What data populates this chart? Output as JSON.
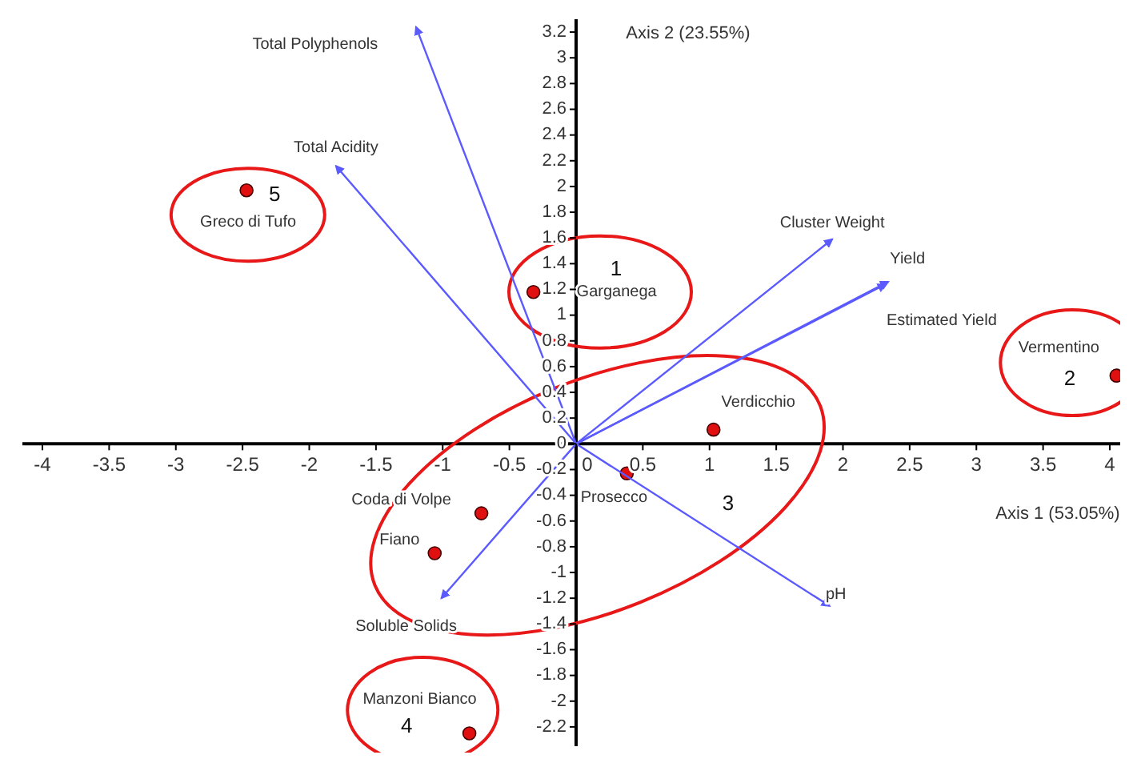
{
  "chart_data": {
    "type": "scatter",
    "xlabel": "Axis 1 (53.05%)",
    "ylabel": "Axis 2 (23.55%)",
    "xlim": [
      -4.15,
      4.15
    ],
    "ylim": [
      -2.35,
      3.3
    ],
    "xticks": [
      -4,
      -3.5,
      -3,
      -2.5,
      -2,
      -1.5,
      -1,
      -0.5,
      0,
      0.5,
      1,
      1.5,
      2,
      2.5,
      3,
      3.5,
      4
    ],
    "yticks": [
      -2.2,
      -2,
      -1.8,
      -1.6,
      -1.4,
      -1.2,
      -1,
      -0.8,
      -0.6,
      -0.4,
      -0.2,
      0,
      0.2,
      0.4,
      0.6,
      0.8,
      1,
      1.2,
      1.4,
      1.6,
      1.8,
      2,
      2.2,
      2.4,
      2.6,
      2.8,
      3,
      3.2
    ],
    "grid": false,
    "marker": "circle",
    "series": [
      {
        "name": "Greco di Tufo",
        "color": "#e01010",
        "x": [
          -2.47
        ],
        "values": [
          1.97
        ]
      },
      {
        "name": "Garganega",
        "color": "#e01010",
        "x": [
          -0.32
        ],
        "values": [
          1.18
        ]
      },
      {
        "name": "Vermentino",
        "color": "#e01010",
        "x": [
          4.05
        ],
        "values": [
          0.53
        ]
      },
      {
        "name": "Verdicchio",
        "color": "#e01010",
        "x": [
          1.03
        ],
        "values": [
          0.11
        ]
      },
      {
        "name": "Prosecco",
        "color": "#e01010",
        "x": [
          0.38
        ],
        "values": [
          -0.23
        ]
      },
      {
        "name": "Coda di Volpe",
        "color": "#e01010",
        "x": [
          -0.71
        ],
        "values": [
          -0.54
        ]
      },
      {
        "name": "Fiano",
        "color": "#e01010",
        "x": [
          -1.06
        ],
        "values": [
          -0.85
        ]
      },
      {
        "name": "Manzoni Bianco",
        "color": "#e01010",
        "x": [
          -0.8
        ],
        "values": [
          -2.25
        ]
      },
      {
        "name": "Total Polyphenols",
        "type": "line",
        "marker": "none",
        "color": "#5a5aff",
        "x": [
          0,
          -1.2
        ],
        "values": [
          0,
          3.24
        ]
      },
      {
        "name": "Total Acidity",
        "type": "line",
        "marker": "none",
        "color": "#5a5aff",
        "x": [
          0,
          -1.8
        ],
        "values": [
          0,
          2.16
        ]
      },
      {
        "name": "Cluster Weight",
        "type": "line",
        "marker": "none",
        "color": "#5a5aff",
        "x": [
          0,
          1.92
        ],
        "values": [
          0,
          1.59
        ]
      },
      {
        "name": "Yield",
        "type": "line",
        "marker": "none",
        "color": "#5a5aff",
        "x": [
          0,
          2.34
        ],
        "values": [
          0,
          1.26
        ]
      },
      {
        "name": "Estimated Yield",
        "type": "line",
        "marker": "none",
        "color": "#5a5aff",
        "x": [
          0,
          2.32
        ],
        "values": [
          0,
          1.24
        ]
      },
      {
        "name": "pH",
        "type": "line",
        "marker": "none",
        "color": "#5a5aff",
        "x": [
          0,
          1.9
        ],
        "values": [
          0,
          -1.26
        ]
      },
      {
        "name": "Soluble Solids",
        "type": "line",
        "marker": "none",
        "color": "#5a5aff",
        "x": [
          0,
          -1.01
        ],
        "values": [
          0,
          -1.2
        ]
      }
    ],
    "annotations": [
      "1",
      "2",
      "3",
      "4",
      "5"
    ]
  }
}
